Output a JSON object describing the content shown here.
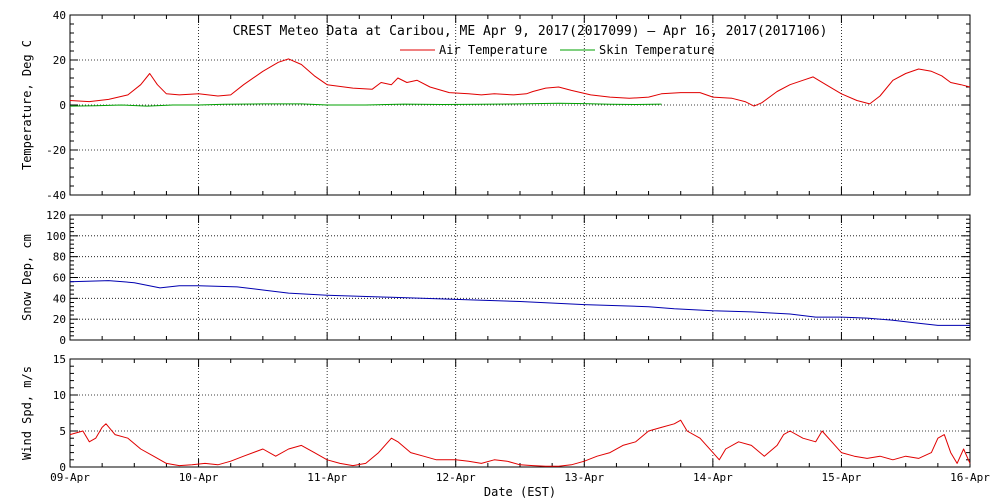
{
  "chart_data": {
    "type": "line",
    "title": "CREST Meteo Data at Caribou, ME   Apr  9, 2017(2017099) — Apr 16, 2017(2017106)",
    "xlabel": "Date (EST)",
    "x_ticks": [
      "09-Apr",
      "10-Apr",
      "11-Apr",
      "12-Apr",
      "13-Apr",
      "14-Apr",
      "15-Apr",
      "16-Apr"
    ],
    "xlim": [
      0,
      7
    ],
    "grid": true,
    "panels": [
      {
        "ylabel": "Temperature, Deg C",
        "ylim": [
          -40,
          40
        ],
        "y_ticks": [
          -40,
          -20,
          0,
          20,
          40
        ],
        "legend": "top-center",
        "series": [
          {
            "name": "Air Temperature",
            "color": "#e00000",
            "points": [
              [
                0,
                2
              ],
              [
                0.15,
                1.5
              ],
              [
                0.3,
                2.5
              ],
              [
                0.45,
                4.5
              ],
              [
                0.55,
                9
              ],
              [
                0.62,
                14
              ],
              [
                0.68,
                9
              ],
              [
                0.75,
                5
              ],
              [
                0.85,
                4.5
              ],
              [
                1.0,
                5
              ],
              [
                1.15,
                4
              ],
              [
                1.25,
                4.5
              ],
              [
                1.35,
                9
              ],
              [
                1.5,
                15
              ],
              [
                1.62,
                19
              ],
              [
                1.7,
                20.5
              ],
              [
                1.8,
                18
              ],
              [
                1.9,
                13
              ],
              [
                2.0,
                9
              ],
              [
                2.2,
                7.5
              ],
              [
                2.35,
                7
              ],
              [
                2.42,
                10
              ],
              [
                2.5,
                9
              ],
              [
                2.55,
                12
              ],
              [
                2.62,
                10
              ],
              [
                2.7,
                11
              ],
              [
                2.8,
                8
              ],
              [
                2.95,
                5.5
              ],
              [
                3.1,
                5
              ],
              [
                3.2,
                4.5
              ],
              [
                3.3,
                5
              ],
              [
                3.45,
                4.5
              ],
              [
                3.55,
                5
              ],
              [
                3.6,
                6
              ],
              [
                3.7,
                7.5
              ],
              [
                3.8,
                8
              ],
              [
                3.9,
                6.5
              ],
              [
                4.05,
                4.5
              ],
              [
                4.2,
                3.5
              ],
              [
                4.35,
                3
              ],
              [
                4.5,
                3.5
              ],
              [
                4.6,
                5
              ],
              [
                4.75,
                5.5
              ],
              [
                4.9,
                5.5
              ],
              [
                5.0,
                3.5
              ],
              [
                5.15,
                3
              ],
              [
                5.25,
                1.5
              ],
              [
                5.32,
                -0.5
              ],
              [
                5.38,
                1
              ],
              [
                5.5,
                6
              ],
              [
                5.6,
                9
              ],
              [
                5.7,
                11
              ],
              [
                5.78,
                12.5
              ],
              [
                5.88,
                9
              ],
              [
                6.0,
                5
              ],
              [
                6.12,
                2
              ],
              [
                6.22,
                0.5
              ],
              [
                6.3,
                4
              ],
              [
                6.4,
                11
              ],
              [
                6.5,
                14
              ],
              [
                6.6,
                16
              ],
              [
                6.7,
                15
              ],
              [
                6.78,
                13
              ],
              [
                6.85,
                10
              ],
              [
                6.93,
                9
              ],
              [
                7.0,
                8
              ]
            ]
          },
          {
            "name": "Skin Temperature",
            "color": "#00a000",
            "points": [
              [
                0,
                -0.5
              ],
              [
                0.2,
                -0.3
              ],
              [
                0.4,
                0
              ],
              [
                0.6,
                -0.5
              ],
              [
                0.8,
                0
              ],
              [
                1.0,
                0
              ],
              [
                1.2,
                0.3
              ],
              [
                1.5,
                0.5
              ],
              [
                1.8,
                0.5
              ],
              [
                2.0,
                0
              ],
              [
                2.3,
                0
              ],
              [
                2.6,
                0.4
              ],
              [
                2.9,
                0.2
              ],
              [
                3.2,
                0.3
              ],
              [
                3.5,
                0.5
              ],
              [
                3.8,
                0.8
              ],
              [
                4.0,
                0.6
              ],
              [
                4.2,
                0.3
              ],
              [
                4.4,
                0.2
              ],
              [
                4.6,
                0.4
              ]
            ]
          }
        ]
      },
      {
        "ylabel": "Snow Dep, cm",
        "ylim": [
          0,
          120
        ],
        "y_ticks": [
          0,
          20,
          40,
          60,
          80,
          100,
          120
        ],
        "series": [
          {
            "color": "#0000b0",
            "points": [
              [
                0,
                56
              ],
              [
                0.3,
                57
              ],
              [
                0.5,
                55
              ],
              [
                0.7,
                50
              ],
              [
                0.85,
                52
              ],
              [
                1.0,
                52
              ],
              [
                1.3,
                51
              ],
              [
                1.5,
                48
              ],
              [
                1.7,
                45
              ],
              [
                2.0,
                43
              ],
              [
                2.5,
                41
              ],
              [
                3.0,
                39
              ],
              [
                3.5,
                37
              ],
              [
                4.0,
                34
              ],
              [
                4.5,
                32
              ],
              [
                4.7,
                30
              ],
              [
                5.0,
                28
              ],
              [
                5.3,
                27
              ],
              [
                5.6,
                25
              ],
              [
                5.8,
                22
              ],
              [
                6.0,
                22
              ],
              [
                6.2,
                21
              ],
              [
                6.4,
                19
              ],
              [
                6.6,
                16
              ],
              [
                6.75,
                14
              ],
              [
                7.0,
                14
              ]
            ]
          }
        ]
      },
      {
        "ylabel": "Wind Spd, m/s",
        "ylim": [
          0,
          15
        ],
        "y_ticks": [
          0,
          5,
          10,
          15
        ],
        "series": [
          {
            "color": "#e00000",
            "points": [
              [
                0,
                4.5
              ],
              [
                0.1,
                5
              ],
              [
                0.15,
                3.5
              ],
              [
                0.2,
                4
              ],
              [
                0.25,
                5.5
              ],
              [
                0.28,
                6
              ],
              [
                0.35,
                4.5
              ],
              [
                0.45,
                4
              ],
              [
                0.55,
                2.5
              ],
              [
                0.65,
                1.5
              ],
              [
                0.75,
                0.5
              ],
              [
                0.85,
                0.2
              ],
              [
                0.95,
                0.3
              ],
              [
                1.05,
                0.5
              ],
              [
                1.15,
                0.3
              ],
              [
                1.25,
                0.8
              ],
              [
                1.35,
                1.5
              ],
              [
                1.5,
                2.5
              ],
              [
                1.6,
                1.5
              ],
              [
                1.7,
                2.5
              ],
              [
                1.8,
                3
              ],
              [
                1.9,
                2
              ],
              [
                2.0,
                1
              ],
              [
                2.1,
                0.5
              ],
              [
                2.2,
                0.2
              ],
              [
                2.3,
                0.5
              ],
              [
                2.4,
                2
              ],
              [
                2.5,
                4
              ],
              [
                2.55,
                3.5
              ],
              [
                2.65,
                2
              ],
              [
                2.75,
                1.5
              ],
              [
                2.85,
                1
              ],
              [
                3.0,
                1
              ],
              [
                3.1,
                0.8
              ],
              [
                3.2,
                0.5
              ],
              [
                3.3,
                1
              ],
              [
                3.4,
                0.8
              ],
              [
                3.5,
                0.3
              ],
              [
                3.6,
                0.2
              ],
              [
                3.7,
                0.1
              ],
              [
                3.8,
                0.1
              ],
              [
                3.9,
                0.3
              ],
              [
                4.0,
                0.8
              ],
              [
                4.1,
                1.5
              ],
              [
                4.2,
                2
              ],
              [
                4.3,
                3
              ],
              [
                4.4,
                3.5
              ],
              [
                4.5,
                5
              ],
              [
                4.6,
                5.5
              ],
              [
                4.7,
                6
              ],
              [
                4.75,
                6.5
              ],
              [
                4.8,
                5
              ],
              [
                4.9,
                4
              ],
              [
                5.0,
                2
              ],
              [
                5.05,
                1
              ],
              [
                5.1,
                2.5
              ],
              [
                5.2,
                3.5
              ],
              [
                5.3,
                3
              ],
              [
                5.4,
                1.5
              ],
              [
                5.5,
                3
              ],
              [
                5.55,
                4.5
              ],
              [
                5.6,
                5
              ],
              [
                5.7,
                4
              ],
              [
                5.8,
                3.5
              ],
              [
                5.85,
                5
              ],
              [
                5.95,
                3
              ],
              [
                6.0,
                2
              ],
              [
                6.1,
                1.5
              ],
              [
                6.2,
                1.2
              ],
              [
                6.3,
                1.5
              ],
              [
                6.4,
                1
              ],
              [
                6.5,
                1.5
              ],
              [
                6.6,
                1.2
              ],
              [
                6.7,
                2
              ],
              [
                6.75,
                4
              ],
              [
                6.8,
                4.5
              ],
              [
                6.85,
                2
              ],
              [
                6.9,
                0.5
              ],
              [
                6.95,
                2.5
              ],
              [
                7.0,
                0.5
              ]
            ]
          }
        ]
      }
    ]
  }
}
